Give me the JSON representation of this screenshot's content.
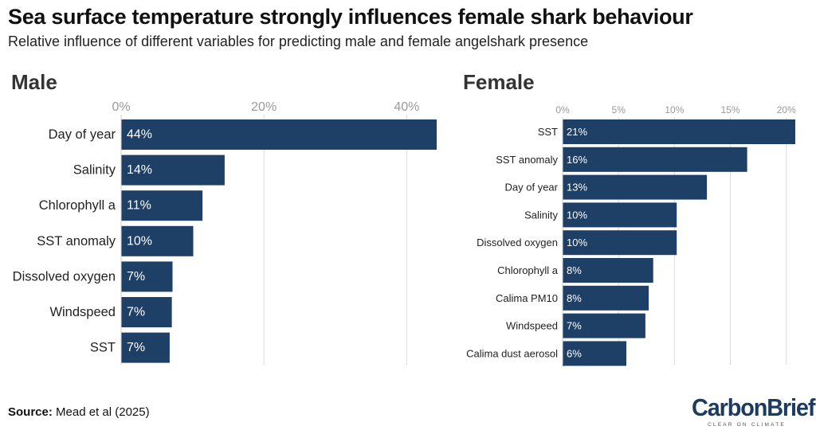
{
  "chart_data": [
    {
      "type": "bar",
      "orientation": "horizontal",
      "panel_title": "Male",
      "categories": [
        "Day of year",
        "Salinity",
        "Chlorophyll a",
        "SST anomaly",
        "Dissolved oxygen",
        "Windspeed",
        "SST"
      ],
      "values": [
        44,
        14,
        11,
        10,
        7,
        7,
        7
      ],
      "value_labels": [
        "44%",
        "14%",
        "11%",
        "10%",
        "7%",
        "7%",
        "7%"
      ],
      "true_values": [
        44.2,
        14.5,
        11.4,
        10.1,
        7.2,
        7.1,
        6.8
      ],
      "xticks": [
        0,
        20,
        40
      ],
      "xtick_labels": [
        "0%",
        "20%",
        "40%"
      ],
      "xlim": [
        0,
        44.2
      ],
      "bar_color": "#1e3f66",
      "grid": true
    },
    {
      "type": "bar",
      "orientation": "horizontal",
      "panel_title": "Female",
      "categories": [
        "SST",
        "SST anomaly",
        "Day of year",
        "Salinity",
        "Dissolved oxygen",
        "Chlorophyll a",
        "Calima PM10",
        "Windspeed",
        "Calima dust aerosol"
      ],
      "values": [
        21,
        16,
        13,
        10,
        10,
        8,
        8,
        7,
        6
      ],
      "value_labels": [
        "21%",
        "16%",
        "13%",
        "10%",
        "10%",
        "8%",
        "8%",
        "7%",
        "6%"
      ],
      "true_values": [
        20.8,
        16.5,
        12.9,
        10.2,
        10.2,
        8.1,
        7.7,
        7.4,
        5.7
      ],
      "xticks": [
        0,
        5,
        10,
        15,
        20
      ],
      "xtick_labels": [
        "0%",
        "5%",
        "10%",
        "15%",
        "20%"
      ],
      "xlim": [
        0,
        20.8
      ],
      "bar_color": "#1e3f66",
      "grid": true
    }
  ],
  "header": {
    "title": "Sea surface temperature strongly influences female shark behaviour",
    "subtitle": "Relative influence of different variables for predicting male and female angelshark presence"
  },
  "footer": {
    "source_label": "Source:",
    "source_text": " Mead et al (2025)",
    "logo_text": "CarbonBrief",
    "logo_tagline": "CLEAR ON CLIMATE"
  }
}
